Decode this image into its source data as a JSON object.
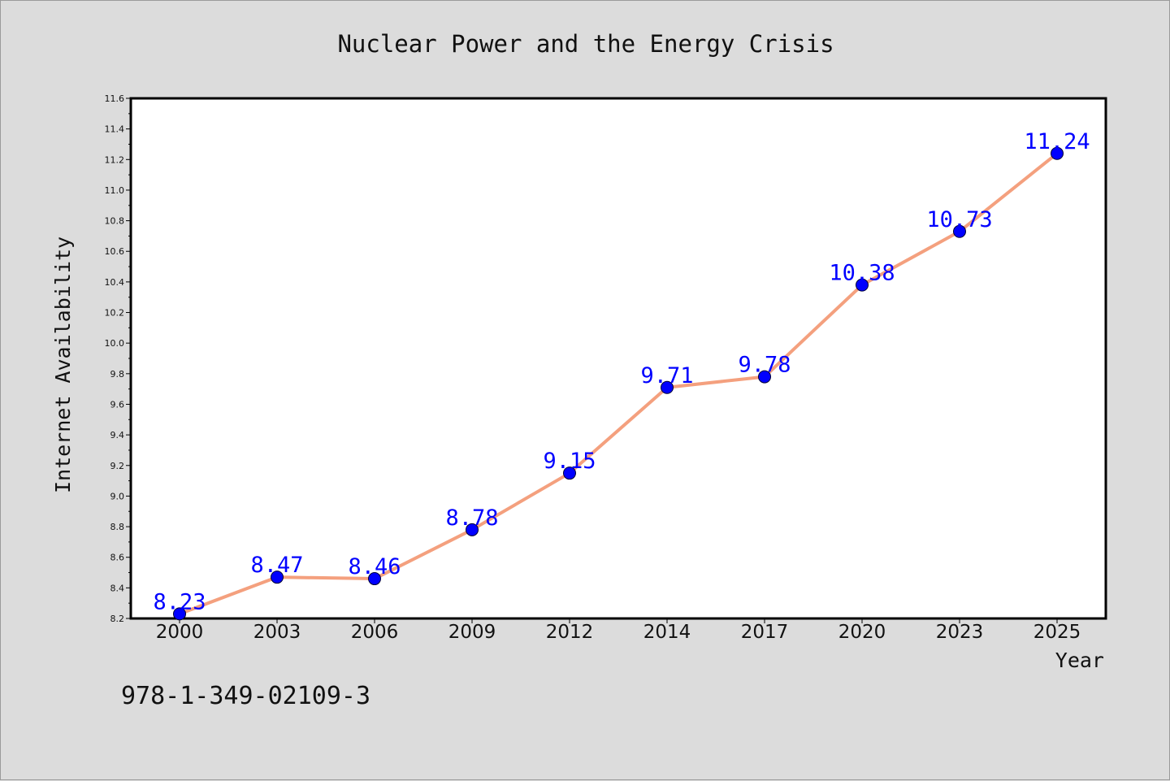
{
  "chart_data": {
    "type": "line",
    "title": "Nuclear Power and the Energy Crisis",
    "xlabel": "Year",
    "ylabel": "Internet Availability",
    "categories": [
      "2000",
      "2003",
      "2006",
      "2009",
      "2012",
      "2014",
      "2017",
      "2020",
      "2023",
      "2025"
    ],
    "values": [
      8.23,
      8.47,
      8.46,
      8.78,
      9.15,
      9.71,
      9.78,
      10.38,
      10.73,
      11.24
    ],
    "data_labels": [
      "8.23",
      "8.47",
      "8.46",
      "8.78",
      "9.15",
      "9.71",
      "9.78",
      "10.38",
      "10.73",
      "11.24"
    ],
    "ylim": [
      8.2,
      11.6
    ],
    "yticks": [
      "8.2",
      "8.4",
      "8.6",
      "8.8",
      "9.0",
      "9.2",
      "9.4",
      "9.6",
      "9.8",
      "10.0",
      "10.2",
      "10.4",
      "10.6",
      "10.8",
      "11.0",
      "11.2",
      "11.4",
      "11.6"
    ],
    "grid": false,
    "line_color": "#f4a07e",
    "marker_color": "#0000ff",
    "label_color": "#0000ff"
  },
  "footer": {
    "isbn": "978-1-349-02109-3"
  }
}
